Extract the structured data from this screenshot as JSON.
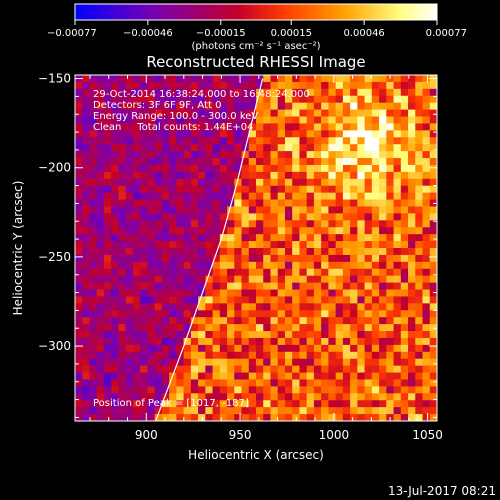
{
  "chart_data": {
    "type": "heatmap",
    "title": "Reconstructed RHESSI Image",
    "xlabel": "Heliocentric X (arcsec)",
    "ylabel": "Heliocentric Y (arcsec)",
    "xlim": [
      862,
      1055
    ],
    "ylim": [
      -342,
      -148
    ],
    "x_ticks": [
      900,
      950,
      1000,
      1050
    ],
    "x_tick_labels": [
      "900",
      "950",
      "1000",
      "1050"
    ],
    "y_ticks": [
      -300,
      -250,
      -200,
      -150
    ],
    "y_tick_labels": [
      "−300",
      "−250",
      "−200",
      "−150"
    ],
    "grid": false,
    "colorbar": {
      "range": [
        -0.00077,
        0.00077
      ],
      "ticks": [
        -0.00077,
        -0.00046,
        -0.00015,
        0.00015,
        0.00046,
        0.00077
      ],
      "tick_labels": [
        "−0.00077",
        "−0.00046",
        "−0.00015",
        "0.00015",
        "0.00046",
        "0.00077"
      ],
      "units": "(photons cm⁻² s⁻¹ asec⁻²)",
      "colormap": "blue-purple-red-orange-yellow-white",
      "colors": [
        "#0000ff",
        "#7a00b0",
        "#c4002a",
        "#ff3c00",
        "#ff9f00",
        "#ffff80",
        "#ffffff"
      ]
    },
    "annotations": [
      "29-Oct-2014 16:38:24.000 to 16:48:24.000",
      "Detectors: 3F 6F 9F, Att 0",
      "Energy Range: 100.0 - 300.0 keV",
      "Clean     Total counts: 1.44E+04",
      "Position of Peak = [1017, -187]"
    ],
    "peak": [
      1017,
      -187
    ],
    "limb": [
      [
        905,
        -342
      ],
      [
        920,
        -300
      ],
      [
        930,
        -270
      ],
      [
        940,
        -240
      ],
      [
        948,
        -210
      ],
      [
        955,
        -180
      ],
      [
        962,
        -150
      ]
    ],
    "grid_resolution": [
      50,
      50
    ]
  },
  "footer": {
    "date": "13-Jul-2017 08:21"
  }
}
